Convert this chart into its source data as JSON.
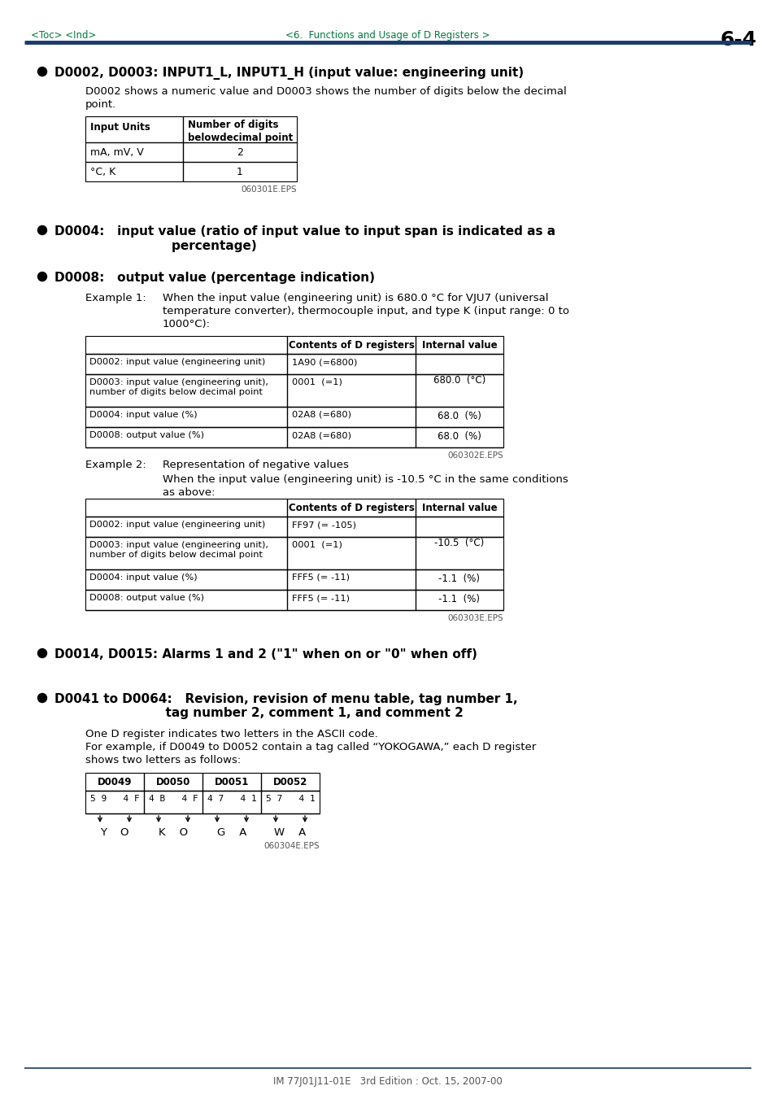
{
  "page_header_left": "<Toc> <Ind>",
  "page_header_center": "<6.  Functions and Usage of D Registers >",
  "page_header_right": "6-4",
  "header_color": "#007a3d",
  "header_line_color": "#1a3a6e",
  "section1_title": "D0002, D0003: INPUT1_L, INPUT1_H (input value: engineering unit)",
  "section1_body1": "D0002 shows a numeric value and D0003 shows the number of digits below the decimal",
  "section1_body2": "point.",
  "table1_caption": "060301E.EPS",
  "section2_line1": "D0004:   input value (ratio of input value to input span is indicated as a",
  "section2_line2": "            percentage)",
  "section3_title": "D0008:   output value (percentage indication)",
  "example1_label": "Example 1:",
  "example1_line1": "When the input value (engineering unit) is 680.0 °C for VJU7 (universal",
  "example1_line2": "temperature converter), thermocouple input, and type K (input range: 0 to",
  "example1_line3": "1000°C):",
  "table2_col2_hdr": "Contents of D registers",
  "table2_col3_hdr": "Internal value",
  "table2_rows": [
    [
      "D0002: input value (engineering unit)",
      "1A90 (=6800)",
      "680.0  (°C)"
    ],
    [
      "D0003: input value (engineering unit),\nnumber of digits below decimal point",
      "0001  (=1)",
      ""
    ],
    [
      "D0004: input value (%)",
      "02A8 (=680)",
      "68.0  (%)"
    ],
    [
      "D0008: output value (%)",
      "02A8 (=680)",
      "68.0  (%)"
    ]
  ],
  "table2_merge_val": "680.0  (°C)",
  "table2_caption": "060302E.EPS",
  "example2_label": "Example 2:",
  "example2_text": "Representation of negative values",
  "example2_sub1": "When the input value (engineering unit) is -10.5 °C in the same conditions",
  "example2_sub2": "as above:",
  "table3_rows": [
    [
      "D0002: input value (engineering unit)",
      "FF97 (= -105)",
      "-10.5  (°C)"
    ],
    [
      "D0003: input value (engineering unit),\nnumber of digits below decimal point",
      "0001  (=1)",
      ""
    ],
    [
      "D0004: input value (%)",
      "FFF5 (= -11)",
      "-1.1  (%)"
    ],
    [
      "D0008: output value (%)",
      "FFF5 (= -11)",
      "-1.1  (%)"
    ]
  ],
  "table3_merge_val": "-10.5  (°C)",
  "table3_caption": "060303E.EPS",
  "section4_title": "D0014, D0015: Alarms 1 and 2 (\"1\" when on or \"0\" when off)",
  "section5_line1": "D0041 to D0064:   Revision, revision of menu table, tag number 1,",
  "section5_line2": "                          tag number 2, comment 1, and comment 2",
  "section5_body1": "One D register indicates two letters in the ASCII code.",
  "section5_body2": "For example, if D0049 to D0052 contain a tag called “YOKOGAWA,” each D register",
  "section5_body3": "shows two letters as follows:",
  "ascii_headers": [
    "D0049",
    "D0050",
    "D0051",
    "D0052"
  ],
  "ascii_hex": [
    "5 9   4 F",
    "4 B   4 F",
    "4 7   4 1",
    "5 7   4 1"
  ],
  "ascii_letters": [
    "Y    O",
    "K    O",
    "G    A",
    "W    A"
  ],
  "ascii_caption": "060304E.EPS",
  "footer_text": "IM 77J01J11-01E   3rd Edition : Oct. 15, 2007-00",
  "bg_color": "#ffffff"
}
